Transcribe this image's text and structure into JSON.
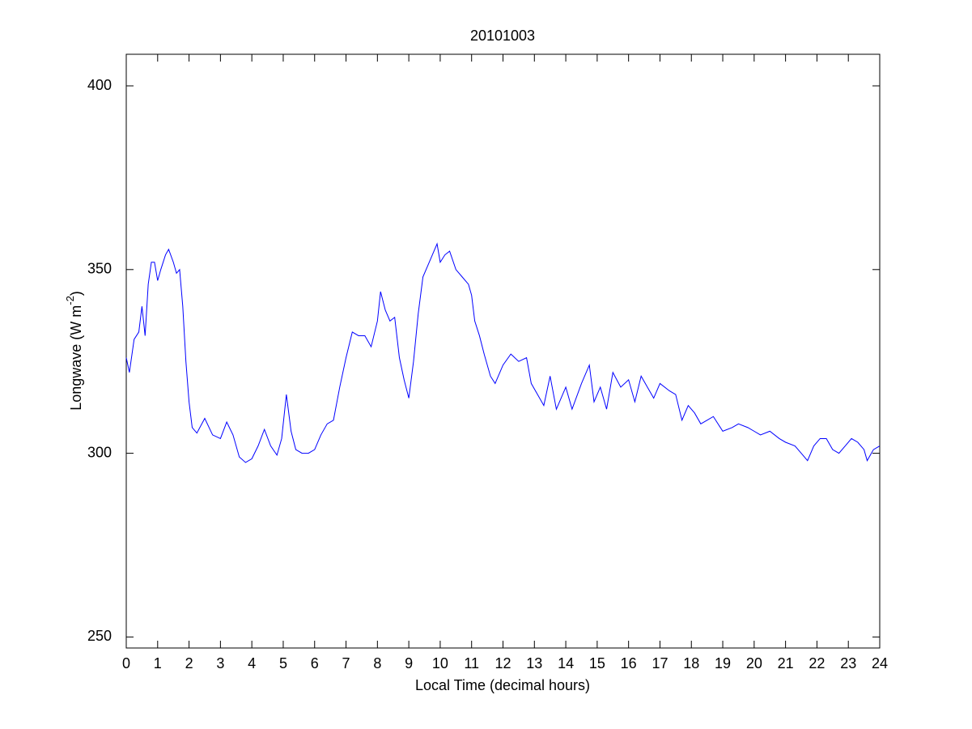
{
  "chart_data": {
    "type": "line",
    "title": "20101003",
    "xlabel": "Local Time (decimal hours)",
    "ylabel": [
      "Longwave (W m",
      "-2",
      ")"
    ],
    "x": [
      0,
      0.1,
      0.25,
      0.4,
      0.5,
      0.6,
      0.7,
      0.8,
      0.9,
      1.0,
      1.1,
      1.25,
      1.35,
      1.5,
      1.6,
      1.7,
      1.8,
      1.9,
      2.0,
      2.1,
      2.25,
      2.5,
      2.75,
      3.0,
      3.2,
      3.4,
      3.6,
      3.8,
      4.0,
      4.2,
      4.4,
      4.6,
      4.8,
      4.95,
      5.1,
      5.25,
      5.4,
      5.6,
      5.8,
      6.0,
      6.2,
      6.4,
      6.6,
      6.8,
      7.0,
      7.2,
      7.4,
      7.6,
      7.8,
      8.0,
      8.1,
      8.25,
      8.4,
      8.55,
      8.7,
      8.85,
      9.0,
      9.15,
      9.3,
      9.45,
      9.6,
      9.75,
      9.9,
      10.0,
      10.15,
      10.3,
      10.5,
      10.7,
      10.9,
      11.0,
      11.1,
      11.25,
      11.4,
      11.6,
      11.75,
      12.0,
      12.25,
      12.5,
      12.75,
      12.9,
      13.1,
      13.3,
      13.5,
      13.7,
      14.0,
      14.2,
      14.5,
      14.75,
      14.9,
      15.1,
      15.3,
      15.5,
      15.75,
      16.0,
      16.2,
      16.4,
      16.6,
      16.8,
      17.0,
      17.3,
      17.5,
      17.7,
      17.9,
      18.1,
      18.3,
      18.5,
      18.7,
      19.0,
      19.3,
      19.5,
      19.8,
      20.0,
      20.2,
      20.5,
      20.8,
      21.0,
      21.3,
      21.5,
      21.7,
      21.9,
      22.1,
      22.3,
      22.5,
      22.7,
      22.9,
      23.1,
      23.3,
      23.5,
      23.6,
      23.8,
      24.0
    ],
    "values": [
      326,
      322,
      331,
      333,
      340,
      332,
      346,
      352,
      352,
      347,
      350,
      354,
      355.5,
      352,
      349,
      350,
      340,
      325,
      314,
      307,
      305.5,
      309.5,
      305,
      304,
      308.5,
      305,
      299,
      297.5,
      298.5,
      302,
      306.5,
      302,
      299.5,
      304,
      316,
      306,
      301,
      300,
      300,
      301,
      305,
      308,
      309,
      318,
      326,
      333,
      332,
      332,
      329,
      336,
      344,
      339,
      336,
      337,
      326,
      320,
      315,
      325,
      338,
      348,
      351,
      354,
      357,
      352,
      354,
      355,
      350,
      348,
      346,
      343,
      336,
      332,
      327,
      321,
      319,
      324,
      327,
      325,
      326,
      319,
      316,
      313,
      321,
      312,
      318,
      312,
      319,
      324,
      314,
      318,
      312,
      322,
      318,
      320,
      314,
      321,
      318,
      315,
      319,
      317,
      316,
      309,
      313,
      311,
      308,
      309,
      310,
      306,
      307,
      308,
      307,
      306,
      305,
      306,
      304,
      303,
      302,
      300,
      298,
      302,
      304,
      304,
      301,
      300,
      302,
      304,
      303,
      301,
      298,
      301,
      302
    ],
    "color": "#0000ff",
    "xlim": [
      0,
      24
    ],
    "xticks": [
      0,
      1,
      2,
      3,
      4,
      5,
      6,
      7,
      8,
      9,
      10,
      11,
      12,
      13,
      14,
      15,
      16,
      17,
      18,
      19,
      20,
      21,
      22,
      23,
      24
    ],
    "ylim": [
      247,
      408.6
    ],
    "yticks": [
      250,
      300,
      350,
      400
    ],
    "grid": false
  }
}
